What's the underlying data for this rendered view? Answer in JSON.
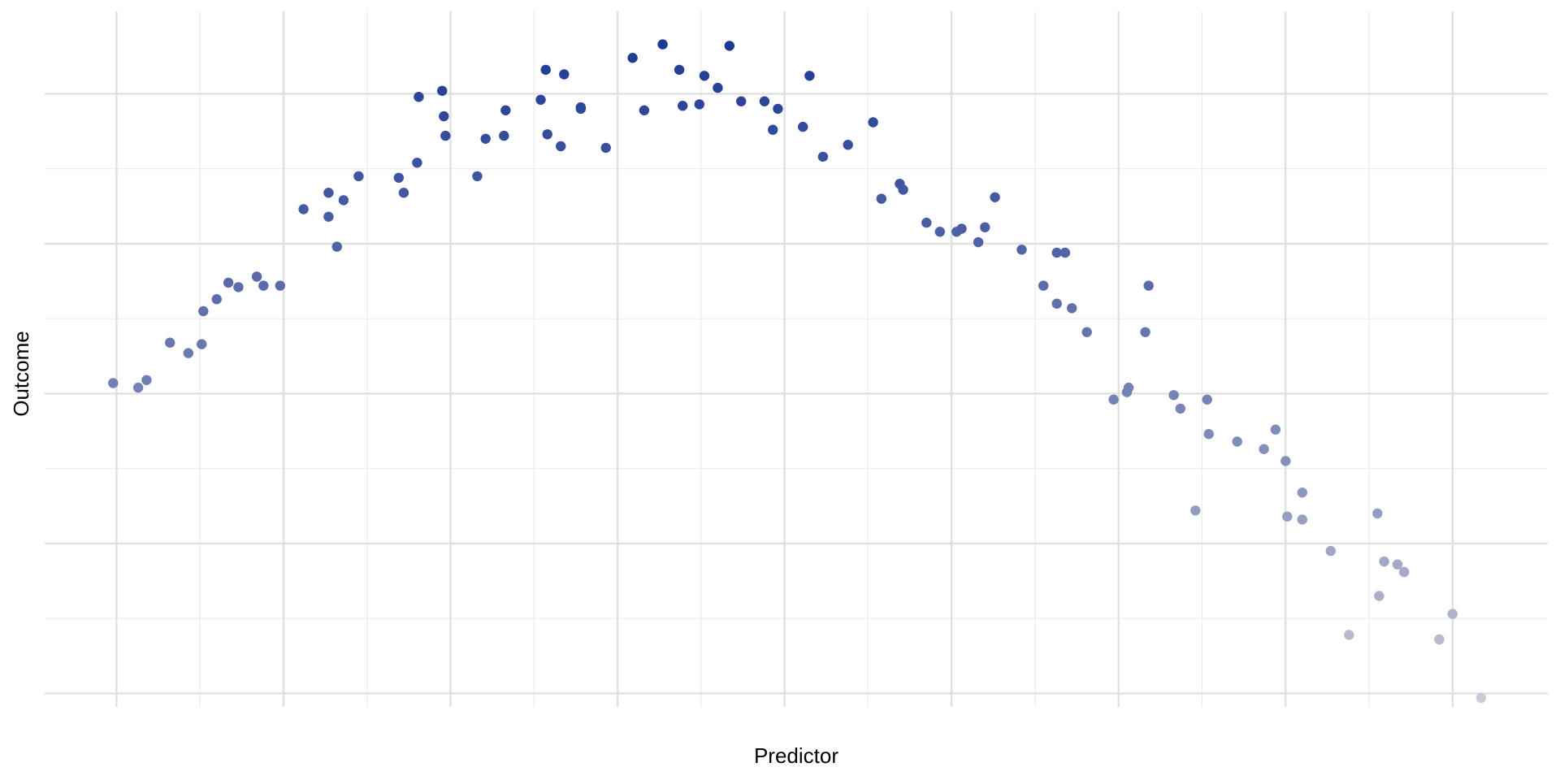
{
  "chart_data": {
    "type": "scatter",
    "title": "",
    "xlabel": "Predictor",
    "ylabel": "Outcome",
    "x_major_ticks": [
      0,
      1,
      2,
      3,
      4,
      5,
      6,
      7,
      8
    ],
    "x_minor_ticks": [
      0.5,
      1.5,
      2.5,
      3.5,
      4.5,
      5.5,
      6.5,
      7.5
    ],
    "y_major_ticks": [
      0,
      1,
      2,
      3,
      4
    ],
    "y_minor_ticks": [
      0.5,
      1.5,
      2.5,
      3.5
    ],
    "xlim": [
      -0.43,
      8.57
    ],
    "ylim": [
      -0.09,
      4.55
    ],
    "grid": true,
    "legend": "none",
    "color_low": "#cbcbd6",
    "color_high": "#1f3a93",
    "points": [
      {
        "x": -0.02,
        "y": 2.07
      },
      {
        "x": 0.13,
        "y": 2.04
      },
      {
        "x": 0.18,
        "y": 2.09
      },
      {
        "x": 0.32,
        "y": 2.34
      },
      {
        "x": 0.43,
        "y": 2.27
      },
      {
        "x": 0.51,
        "y": 2.33
      },
      {
        "x": 0.52,
        "y": 2.55
      },
      {
        "x": 0.6,
        "y": 2.63
      },
      {
        "x": 0.67,
        "y": 2.74
      },
      {
        "x": 0.73,
        "y": 2.71
      },
      {
        "x": 0.84,
        "y": 2.78
      },
      {
        "x": 0.88,
        "y": 2.72
      },
      {
        "x": 0.98,
        "y": 2.72
      },
      {
        "x": 1.12,
        "y": 3.23
      },
      {
        "x": 1.27,
        "y": 3.34
      },
      {
        "x": 1.27,
        "y": 3.18
      },
      {
        "x": 1.32,
        "y": 2.98
      },
      {
        "x": 1.36,
        "y": 3.29
      },
      {
        "x": 1.45,
        "y": 3.45
      },
      {
        "x": 1.69,
        "y": 3.44
      },
      {
        "x": 1.72,
        "y": 3.34
      },
      {
        "x": 1.8,
        "y": 3.54
      },
      {
        "x": 1.81,
        "y": 3.98
      },
      {
        "x": 1.95,
        "y": 4.02
      },
      {
        "x": 1.96,
        "y": 3.85
      },
      {
        "x": 1.97,
        "y": 3.72
      },
      {
        "x": 2.16,
        "y": 3.45
      },
      {
        "x": 2.21,
        "y": 3.7
      },
      {
        "x": 2.32,
        "y": 3.72
      },
      {
        "x": 2.33,
        "y": 3.89
      },
      {
        "x": 2.54,
        "y": 3.96
      },
      {
        "x": 2.57,
        "y": 4.16
      },
      {
        "x": 2.58,
        "y": 3.73
      },
      {
        "x": 2.66,
        "y": 3.65
      },
      {
        "x": 2.68,
        "y": 4.13
      },
      {
        "x": 2.78,
        "y": 3.91
      },
      {
        "x": 2.78,
        "y": 3.9
      },
      {
        "x": 2.93,
        "y": 3.64
      },
      {
        "x": 3.09,
        "y": 4.24
      },
      {
        "x": 3.16,
        "y": 3.89
      },
      {
        "x": 3.27,
        "y": 4.33
      },
      {
        "x": 3.37,
        "y": 4.16
      },
      {
        "x": 3.39,
        "y": 3.92
      },
      {
        "x": 3.49,
        "y": 3.93
      },
      {
        "x": 3.52,
        "y": 4.12
      },
      {
        "x": 3.6,
        "y": 4.04
      },
      {
        "x": 3.67,
        "y": 4.32
      },
      {
        "x": 3.74,
        "y": 3.95
      },
      {
        "x": 3.88,
        "y": 3.95
      },
      {
        "x": 3.93,
        "y": 3.76
      },
      {
        "x": 3.96,
        "y": 3.9
      },
      {
        "x": 4.11,
        "y": 3.78
      },
      {
        "x": 4.15,
        "y": 4.12
      },
      {
        "x": 4.23,
        "y": 3.58
      },
      {
        "x": 4.38,
        "y": 3.66
      },
      {
        "x": 4.53,
        "y": 3.81
      },
      {
        "x": 4.58,
        "y": 3.3
      },
      {
        "x": 4.69,
        "y": 3.4
      },
      {
        "x": 4.71,
        "y": 3.36
      },
      {
        "x": 4.85,
        "y": 3.14
      },
      {
        "x": 4.93,
        "y": 3.08
      },
      {
        "x": 5.03,
        "y": 3.08
      },
      {
        "x": 5.06,
        "y": 3.1
      },
      {
        "x": 5.16,
        "y": 3.01
      },
      {
        "x": 5.2,
        "y": 3.11
      },
      {
        "x": 5.26,
        "y": 3.31
      },
      {
        "x": 5.42,
        "y": 2.96
      },
      {
        "x": 5.55,
        "y": 2.72
      },
      {
        "x": 5.63,
        "y": 2.6
      },
      {
        "x": 5.63,
        "y": 2.94
      },
      {
        "x": 5.68,
        "y": 2.94
      },
      {
        "x": 5.72,
        "y": 2.57
      },
      {
        "x": 5.81,
        "y": 2.41
      },
      {
        "x": 5.97,
        "y": 1.96
      },
      {
        "x": 6.05,
        "y": 2.01
      },
      {
        "x": 6.06,
        "y": 2.04
      },
      {
        "x": 6.16,
        "y": 2.41
      },
      {
        "x": 6.18,
        "y": 2.72
      },
      {
        "x": 6.33,
        "y": 1.99
      },
      {
        "x": 6.37,
        "y": 1.9
      },
      {
        "x": 6.46,
        "y": 1.22
      },
      {
        "x": 6.53,
        "y": 1.96
      },
      {
        "x": 6.54,
        "y": 1.73
      },
      {
        "x": 6.71,
        "y": 1.68
      },
      {
        "x": 6.87,
        "y": 1.63
      },
      {
        "x": 6.94,
        "y": 1.76
      },
      {
        "x": 7.0,
        "y": 1.55
      },
      {
        "x": 7.01,
        "y": 1.18
      },
      {
        "x": 7.1,
        "y": 1.34
      },
      {
        "x": 7.1,
        "y": 1.16
      },
      {
        "x": 7.27,
        "y": 0.95
      },
      {
        "x": 7.38,
        "y": 0.39
      },
      {
        "x": 7.55,
        "y": 1.2
      },
      {
        "x": 7.56,
        "y": 0.65
      },
      {
        "x": 7.59,
        "y": 0.88
      },
      {
        "x": 7.67,
        "y": 0.86
      },
      {
        "x": 7.71,
        "y": 0.81
      },
      {
        "x": 7.92,
        "y": 0.36
      },
      {
        "x": 8.0,
        "y": 0.53
      },
      {
        "x": 8.17,
        "y": -0.03
      }
    ]
  }
}
